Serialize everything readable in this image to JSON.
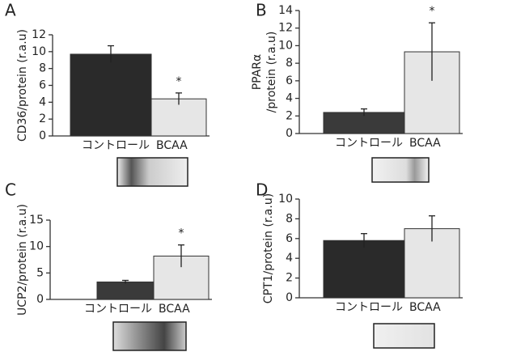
{
  "chart_data": [
    {
      "type": "bar",
      "panel": "A",
      "ylabel": "CD36/protein (r.a.u)",
      "categories": [
        "コントロール",
        "BCAA"
      ],
      "values": [
        9.7,
        4.4
      ],
      "errors": [
        1.0,
        0.7
      ],
      "colors": [
        "#2a2a2a",
        "#e6e6e6"
      ],
      "annotation": "*",
      "ylim": [
        0,
        12
      ],
      "yticks": [
        0,
        2,
        4,
        6,
        8,
        10,
        12
      ]
    },
    {
      "type": "bar",
      "panel": "B",
      "ylabel": [
        "PPARα",
        "/protein (r.a.u)"
      ],
      "categories": [
        "コントロール",
        "BCAA"
      ],
      "values": [
        2.4,
        9.3
      ],
      "errors": [
        0.4,
        3.3
      ],
      "colors": [
        "#3a3a3a",
        "#e6e6e6"
      ],
      "annotation": "*",
      "ylim": [
        0,
        14
      ],
      "yticks": [
        0,
        2,
        4,
        6,
        8,
        10,
        12,
        14
      ]
    },
    {
      "type": "bar",
      "panel": "C",
      "ylabel": "UCP2/protein (r.a.u)",
      "categories": [
        "コントロール",
        "BCAA"
      ],
      "values": [
        3.3,
        8.2
      ],
      "errors": [
        0.3,
        2.1
      ],
      "colors": [
        "#3a3a3a",
        "#e6e6e6"
      ],
      "annotation": "*",
      "ylim": [
        0,
        15
      ],
      "yticks": [
        0,
        5,
        10,
        15
      ]
    },
    {
      "type": "bar",
      "panel": "D",
      "ylabel": "CPT1/protein (r.a.u)",
      "categories": [
        "コントロール",
        "BCAA"
      ],
      "values": [
        5.8,
        7.0
      ],
      "errors": [
        0.7,
        1.3
      ],
      "colors": [
        "#2a2a2a",
        "#e6e6e6"
      ],
      "ylim": [
        0,
        10
      ],
      "yticks": [
        0,
        2,
        4,
        6,
        8,
        10
      ]
    }
  ]
}
